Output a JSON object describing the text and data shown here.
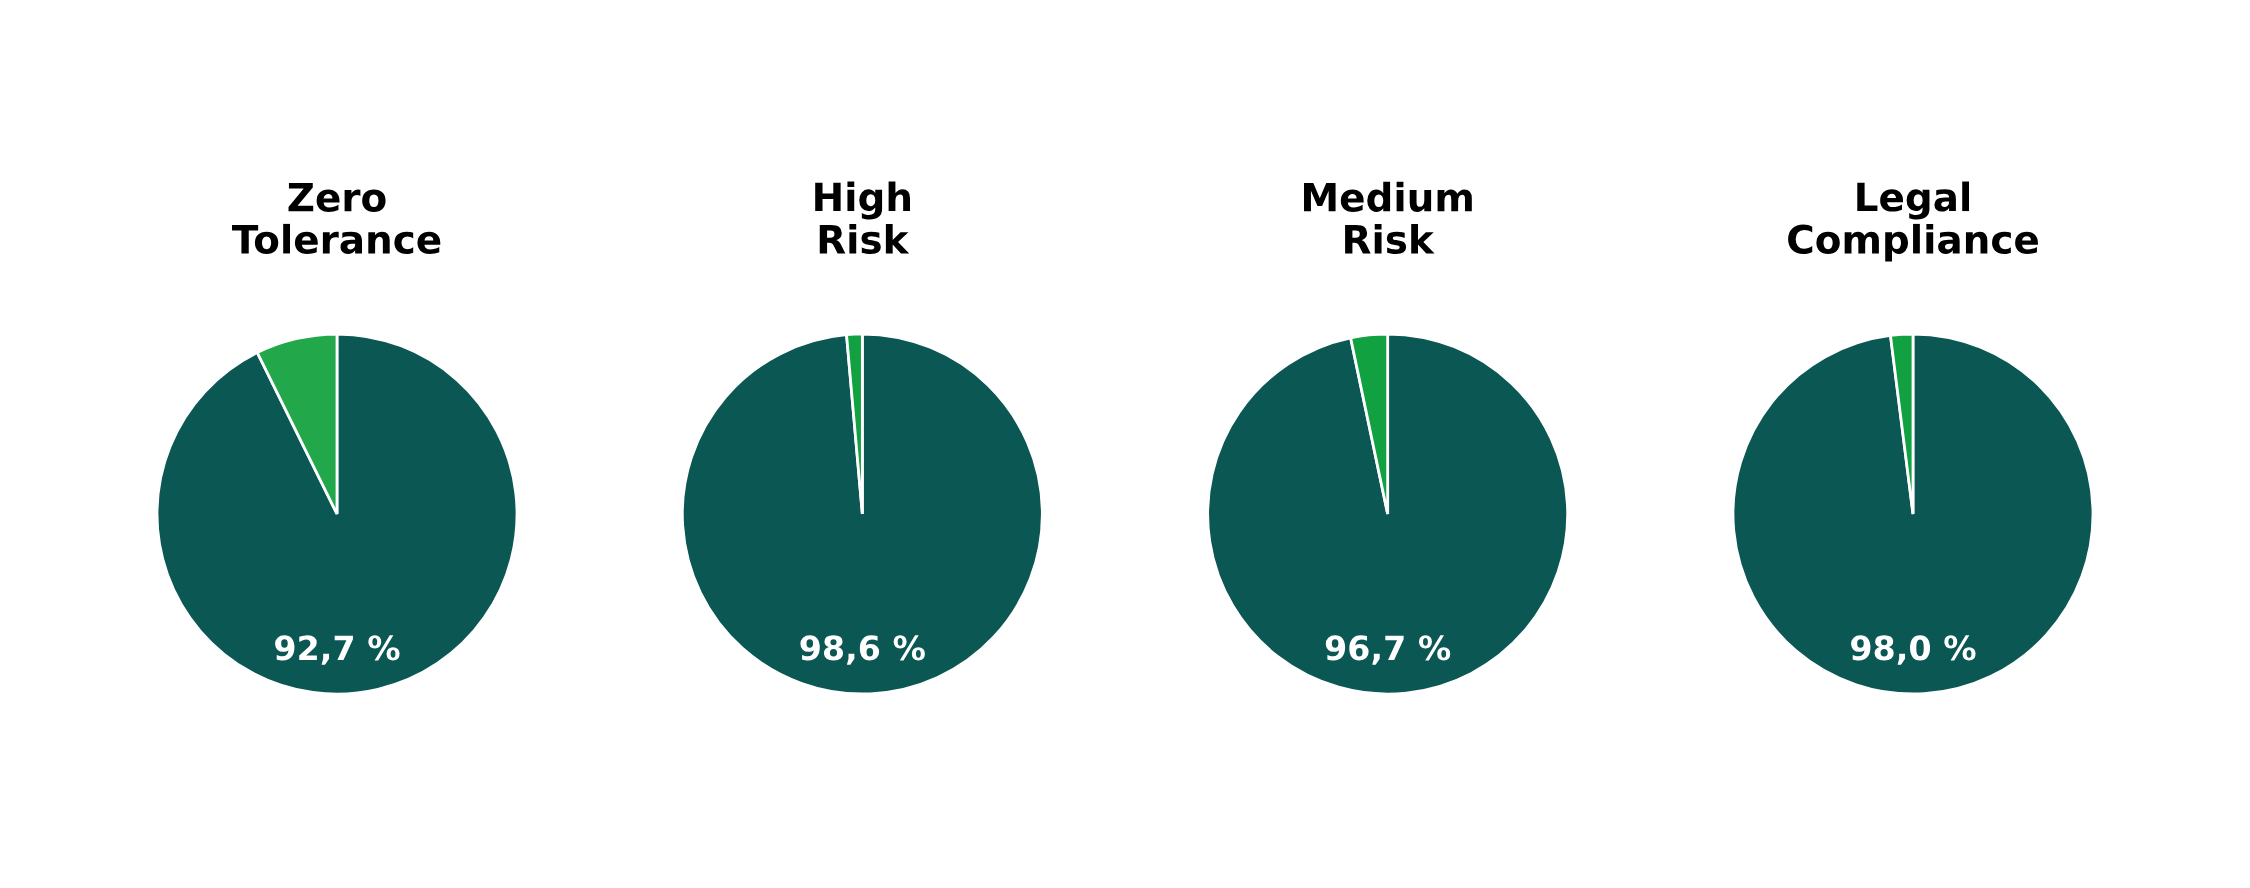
{
  "chart_data": [
    {
      "type": "pie",
      "title": "Zero\nTolerance",
      "categories": [
        null,
        null
      ],
      "values": [
        92.7,
        7.3
      ],
      "colors": [
        "#0b5754",
        "#22a84a"
      ],
      "value_labels": [
        "92,7 %",
        null
      ]
    },
    {
      "type": "pie",
      "title": "High\nRisk",
      "categories": [
        null,
        null
      ],
      "values": [
        98.6,
        1.4
      ],
      "colors": [
        "#0b5754",
        "#12a140"
      ],
      "value_labels": [
        "98,6 %",
        null
      ]
    },
    {
      "type": "pie",
      "title": "Medium\nRisk",
      "categories": [
        null,
        null
      ],
      "values": [
        96.7,
        3.3
      ],
      "colors": [
        "#0b5754",
        "#12a140"
      ],
      "value_labels": [
        "96,7 %",
        null
      ]
    },
    {
      "type": "pie",
      "title": "Legal\nCompliance",
      "categories": [
        null,
        null
      ],
      "values": [
        98.0,
        2.0
      ],
      "colors": [
        "#0b5754",
        "#12a140"
      ],
      "value_labels": [
        "98,0 %",
        null
      ]
    }
  ]
}
